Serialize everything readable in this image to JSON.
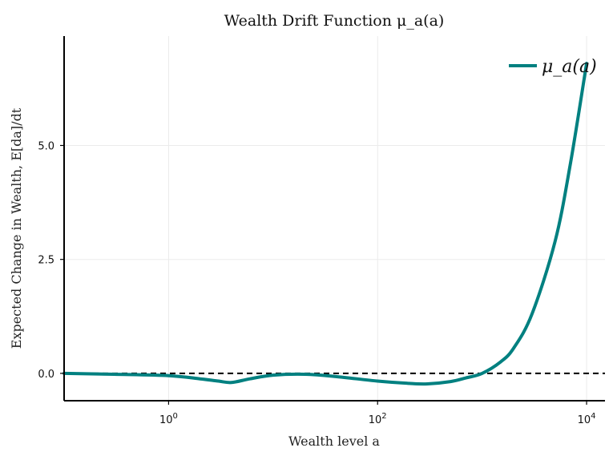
{
  "chart_data": {
    "type": "line",
    "title": "Wealth Drift Function μ_a(a)",
    "xlabel": "Wealth level a",
    "ylabel": "Expected Change in Wealth, E[da]/dt",
    "x_scale": "log10",
    "xlim": [
      0.1,
      15000
    ],
    "ylim": [
      -0.6,
      7.4
    ],
    "x_ticks": [
      {
        "value": 1,
        "label": "10^0",
        "base": "10",
        "exp": "0"
      },
      {
        "value": 100,
        "label": "10^2",
        "base": "10",
        "exp": "2"
      },
      {
        "value": 10000,
        "label": "10^4",
        "base": "10",
        "exp": "4"
      }
    ],
    "y_ticks": [
      {
        "value": 0.0,
        "label": "0.0"
      },
      {
        "value": 2.5,
        "label": "2.5"
      },
      {
        "value": 5.0,
        "label": "5.0"
      }
    ],
    "grid": true,
    "legend": {
      "placement": "top-right"
    },
    "reference_lines": [
      {
        "y": 0,
        "style": "dashed",
        "color": "#000000"
      }
    ],
    "series": [
      {
        "name": "μ_a(a)",
        "color": "#008080",
        "x": [
          0.1,
          0.3,
          1,
          2,
          3,
          4,
          6,
          10,
          20,
          40,
          100,
          200,
          300,
          500,
          700,
          1000,
          1500,
          2000,
          3000,
          5000,
          7000,
          10000
        ],
        "y": [
          0.0,
          -0.02,
          -0.05,
          -0.12,
          -0.17,
          -0.2,
          -0.12,
          -0.04,
          -0.02,
          -0.07,
          -0.17,
          -0.22,
          -0.23,
          -0.18,
          -0.1,
          0.0,
          0.25,
          0.55,
          1.3,
          2.9,
          4.6,
          6.8
        ]
      }
    ]
  }
}
